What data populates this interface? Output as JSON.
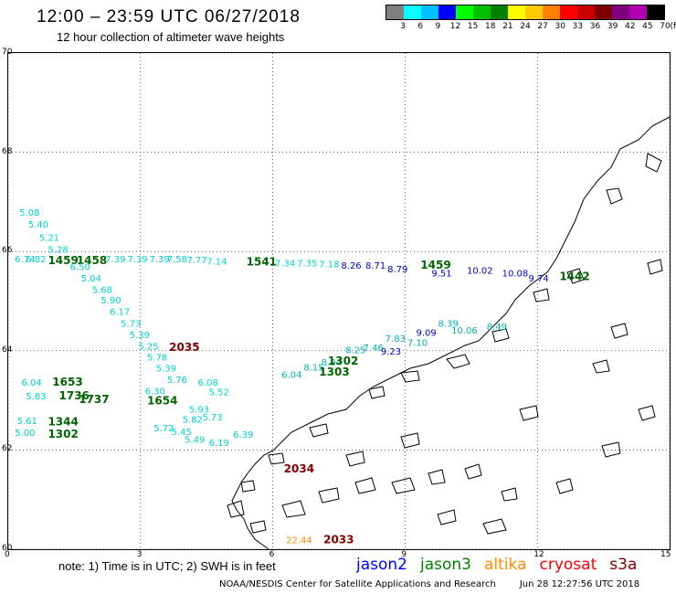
{
  "header": {
    "title": "12:00 – 23:59 UTC 06/27/2018",
    "subtitle": "12 hour collection of altimeter wave heights"
  },
  "legend": {
    "unit": "(ft)",
    "colors": [
      "#7f7f7f",
      "#00ffff",
      "#00bfff",
      "#0000ff",
      "#00ff00",
      "#00c000",
      "#008000",
      "#ffff00",
      "#ffc800",
      "#ff8000",
      "#ff0000",
      "#c80000",
      "#800000",
      "#800080",
      "#b000b0",
      "#000000"
    ],
    "ticks": [
      "3",
      "6",
      "9",
      "12",
      "15",
      "18",
      "21",
      "24",
      "27",
      "30",
      "33",
      "36",
      "39",
      "42",
      "45",
      "70"
    ]
  },
  "axes": {
    "x_ticks": [
      "0",
      "3",
      "6",
      "9",
      "12",
      "15"
    ],
    "y_ticks": [
      "70",
      "68",
      "66",
      "64",
      "62",
      "60"
    ]
  },
  "map_data": {
    "type": "altimeter-track-map",
    "lon_range": [
      0,
      15
    ],
    "lat_range": [
      60,
      70
    ],
    "grid": "dotted",
    "colors": {
      "jason2": "#0000ff",
      "jason3": "#008000",
      "altika": "#ff8c00",
      "cryosat": "#ff0000",
      "s3a": "#800000",
      "cyan": "#00d0d0",
      "blue": "#0000c8",
      "teal": "#00b0b0",
      "darkgreen": "#006400"
    },
    "labels": [
      {
        "text": "5.08",
        "lon": 0.25,
        "lat": 66.72,
        "c": "cyan"
      },
      {
        "text": "5.40",
        "lon": 0.45,
        "lat": 66.48,
        "c": "cyan"
      },
      {
        "text": "5.21",
        "lon": 0.7,
        "lat": 66.22,
        "c": "cyan"
      },
      {
        "text": "5.28",
        "lon": 0.9,
        "lat": 65.98,
        "c": "cyan"
      },
      {
        "text": "6.74",
        "lon": 0.15,
        "lat": 65.78,
        "c": "cyan"
      },
      {
        "text": "6.82",
        "lon": 0.4,
        "lat": 65.78,
        "c": "cyan"
      },
      {
        "text": "1459",
        "lon": 0.9,
        "lat": 65.75,
        "c": "darkgreen",
        "big": true
      },
      {
        "text": "1458",
        "lon": 1.55,
        "lat": 65.75,
        "c": "darkgreen",
        "big": true
      },
      {
        "text": "7.39",
        "lon": 2.2,
        "lat": 65.78,
        "c": "cyan"
      },
      {
        "text": "7.39",
        "lon": 2.7,
        "lat": 65.78,
        "c": "cyan"
      },
      {
        "text": "7.39",
        "lon": 3.2,
        "lat": 65.78,
        "c": "cyan"
      },
      {
        "text": "7.58",
        "lon": 3.6,
        "lat": 65.78,
        "c": "cyan"
      },
      {
        "text": "7.77",
        "lon": 4.05,
        "lat": 65.76,
        "c": "cyan"
      },
      {
        "text": "7.14",
        "lon": 4.5,
        "lat": 65.74,
        "c": "cyan"
      },
      {
        "text": "1541",
        "lon": 5.4,
        "lat": 65.72,
        "c": "darkgreen",
        "big": true
      },
      {
        "text": "7.34",
        "lon": 6.05,
        "lat": 65.7,
        "c": "cyan"
      },
      {
        "text": "7.35",
        "lon": 6.55,
        "lat": 65.7,
        "c": "cyan"
      },
      {
        "text": "7.18",
        "lon": 7.05,
        "lat": 65.68,
        "c": "cyan"
      },
      {
        "text": "8.26",
        "lon": 7.55,
        "lat": 65.65,
        "c": "blue"
      },
      {
        "text": "8.71",
        "lon": 8.1,
        "lat": 65.65,
        "c": "blue"
      },
      {
        "text": "1459",
        "lon": 9.35,
        "lat": 65.65,
        "c": "darkgreen",
        "big": true
      },
      {
        "text": "8.79",
        "lon": 8.6,
        "lat": 65.58,
        "c": "blue"
      },
      {
        "text": "9.51",
        "lon": 9.6,
        "lat": 65.5,
        "c": "blue"
      },
      {
        "text": "10.02",
        "lon": 10.4,
        "lat": 65.55,
        "c": "blue"
      },
      {
        "text": "10.08",
        "lon": 11.2,
        "lat": 65.5,
        "c": "blue"
      },
      {
        "text": "9.74",
        "lon": 11.8,
        "lat": 65.4,
        "c": "blue"
      },
      {
        "text": "1442",
        "lon": 12.5,
        "lat": 65.42,
        "c": "darkgreen",
        "big": true
      },
      {
        "text": "6.50",
        "lon": 1.4,
        "lat": 65.63,
        "c": "cyan"
      },
      {
        "text": "5.04",
        "lon": 1.65,
        "lat": 65.4,
        "c": "cyan"
      },
      {
        "text": "5.68",
        "lon": 1.9,
        "lat": 65.17,
        "c": "cyan"
      },
      {
        "text": "5.90",
        "lon": 2.1,
        "lat": 64.95,
        "c": "cyan"
      },
      {
        "text": "6.17",
        "lon": 2.3,
        "lat": 64.72,
        "c": "cyan"
      },
      {
        "text": "5.73",
        "lon": 2.55,
        "lat": 64.48,
        "c": "cyan"
      },
      {
        "text": "5.39",
        "lon": 2.75,
        "lat": 64.25,
        "c": "cyan"
      },
      {
        "text": "5.25",
        "lon": 2.95,
        "lat": 64.02,
        "c": "cyan"
      },
      {
        "text": "2035",
        "lon": 3.65,
        "lat": 64.0,
        "c": "s3a",
        "big": true
      },
      {
        "text": "5.78",
        "lon": 3.15,
        "lat": 63.8,
        "c": "cyan"
      },
      {
        "text": "5.39",
        "lon": 3.35,
        "lat": 63.58,
        "c": "cyan"
      },
      {
        "text": "5.76",
        "lon": 3.6,
        "lat": 63.35,
        "c": "cyan"
      },
      {
        "text": "6.30",
        "lon": 3.1,
        "lat": 63.12,
        "c": "cyan"
      },
      {
        "text": "6.08",
        "lon": 4.3,
        "lat": 63.3,
        "c": "cyan"
      },
      {
        "text": "5.52",
        "lon": 4.55,
        "lat": 63.1,
        "c": "cyan"
      },
      {
        "text": "1654",
        "lon": 3.15,
        "lat": 62.92,
        "c": "darkgreen",
        "big": true
      },
      {
        "text": "5.93",
        "lon": 4.1,
        "lat": 62.75,
        "c": "cyan"
      },
      {
        "text": "5.82",
        "lon": 3.95,
        "lat": 62.55,
        "c": "cyan"
      },
      {
        "text": "5.73",
        "lon": 4.4,
        "lat": 62.6,
        "c": "cyan"
      },
      {
        "text": "5.72",
        "lon": 3.3,
        "lat": 62.38,
        "c": "cyan"
      },
      {
        "text": "5.45",
        "lon": 3.7,
        "lat": 62.3,
        "c": "cyan"
      },
      {
        "text": "5.49",
        "lon": 4.0,
        "lat": 62.15,
        "c": "cyan"
      },
      {
        "text": "6.39",
        "lon": 5.1,
        "lat": 62.25,
        "c": "cyan"
      },
      {
        "text": "6.19",
        "lon": 4.55,
        "lat": 62.08,
        "c": "cyan"
      },
      {
        "text": "6.04",
        "lon": 0.3,
        "lat": 63.3,
        "c": "cyan"
      },
      {
        "text": "1653",
        "lon": 1.0,
        "lat": 63.3,
        "c": "darkgreen",
        "big": true
      },
      {
        "text": "5.83",
        "lon": 0.4,
        "lat": 63.02,
        "c": "cyan"
      },
      {
        "text": "1736",
        "lon": 1.15,
        "lat": 63.02,
        "c": "darkgreen",
        "big": true
      },
      {
        "text": "1737",
        "lon": 1.6,
        "lat": 62.95,
        "c": "darkgreen",
        "big": true
      },
      {
        "text": "5.61",
        "lon": 0.2,
        "lat": 62.52,
        "c": "cyan"
      },
      {
        "text": "1344",
        "lon": 0.9,
        "lat": 62.5,
        "c": "darkgreen",
        "big": true
      },
      {
        "text": "5.00",
        "lon": 0.15,
        "lat": 62.28,
        "c": "cyan"
      },
      {
        "text": "1302",
        "lon": 0.9,
        "lat": 62.25,
        "c": "darkgreen",
        "big": true
      },
      {
        "text": "6.04",
        "lon": 6.2,
        "lat": 63.45,
        "c": "teal"
      },
      {
        "text": "8.15",
        "lon": 6.7,
        "lat": 63.6,
        "c": "teal"
      },
      {
        "text": "8.94",
        "lon": 7.1,
        "lat": 63.7,
        "c": "teal"
      },
      {
        "text": "1303",
        "lon": 7.05,
        "lat": 63.5,
        "c": "darkgreen",
        "big": true
      },
      {
        "text": "1302",
        "lon": 7.25,
        "lat": 63.72,
        "c": "darkgreen",
        "big": true
      },
      {
        "text": "8.25",
        "lon": 7.65,
        "lat": 63.95,
        "c": "teal"
      },
      {
        "text": "7.46",
        "lon": 8.05,
        "lat": 64.0,
        "c": "teal"
      },
      {
        "text": "7.83",
        "lon": 8.55,
        "lat": 64.18,
        "c": "teal"
      },
      {
        "text": "9.23",
        "lon": 8.45,
        "lat": 63.92,
        "c": "blue"
      },
      {
        "text": "9.09",
        "lon": 9.25,
        "lat": 64.3,
        "c": "blue"
      },
      {
        "text": "8.39",
        "lon": 9.75,
        "lat": 64.48,
        "c": "teal"
      },
      {
        "text": "10.06",
        "lon": 10.05,
        "lat": 64.35,
        "c": "teal"
      },
      {
        "text": "8.49",
        "lon": 10.85,
        "lat": 64.42,
        "c": "teal"
      },
      {
        "text": "7.10",
        "lon": 9.05,
        "lat": 64.1,
        "c": "teal"
      },
      {
        "text": "2034",
        "lon": 6.25,
        "lat": 61.55,
        "c": "s3a",
        "big": true
      },
      {
        "text": "22.44",
        "lon": 6.3,
        "lat": 60.12,
        "c": "altika"
      },
      {
        "text": "2033",
        "lon": 7.15,
        "lat": 60.12,
        "c": "s3a",
        "big": true
      }
    ]
  },
  "footer": {
    "note": "note: 1) Time is in UTC; 2) SWH is in feet",
    "satellites": [
      {
        "name": "jason2",
        "color": "#0000ff"
      },
      {
        "name": "jason3",
        "color": "#008000"
      },
      {
        "name": "altika",
        "color": "#ff8c00"
      },
      {
        "name": "cryosat",
        "color": "#ff0000"
      },
      {
        "name": "s3a",
        "color": "#800000"
      }
    ],
    "credit": "NOAA/NESDIS Center for Satellite Applications and Research",
    "timestamp": "Jun 28 12:27:56 UTC 2018"
  }
}
